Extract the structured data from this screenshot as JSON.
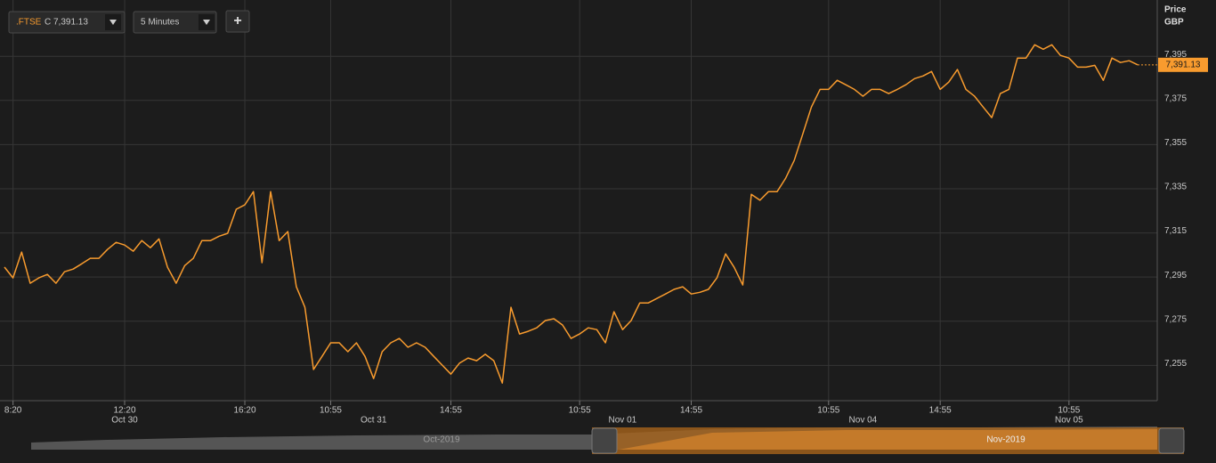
{
  "toolbar": {
    "quote_prefix": "C",
    "interval": "5 Minutes",
    "add_button": "+"
  },
  "chart_data": {
    "type": "line",
    "series": [
      {
        "name": ".FTSE",
        "color": "#f89b2e",
        "values": [
          7299.5,
          7294.6,
          7306.3,
          7292.2,
          7294.6,
          7296.2,
          7292.2,
          7297.4,
          7298.6,
          7301,
          7303.5,
          7303.5,
          7307.5,
          7310.7,
          7309.5,
          7306.7,
          7311.5,
          7308.3,
          7312.3,
          7299.4,
          7292.2,
          7300.2,
          7303.5,
          7311.5,
          7311.5,
          7313.5,
          7314.8,
          7325.7,
          7327.7,
          7333.7,
          7301.5,
          7333.7,
          7311.5,
          7315.6,
          7290.6,
          7281.3,
          7253.1,
          7259.1,
          7265.2,
          7265.2,
          7261.2,
          7265.2,
          7259.1,
          7249,
          7261.2,
          7265.2,
          7267.2,
          7263.2,
          7265.2,
          7263.2,
          7259.1,
          7255.1,
          7251,
          7256,
          7258.3,
          7257.1,
          7260,
          7257.1,
          7247,
          7281.3,
          7269.2,
          7270.4,
          7272,
          7275.3,
          7276.1,
          7273.3,
          7267.2,
          7269.2,
          7272,
          7271.2,
          7265.2,
          7279.3,
          7271.2,
          7275.3,
          7283.3,
          7283.3,
          7285.3,
          7287.3,
          7289.4,
          7290.6,
          7287.3,
          7288.1,
          7289.4,
          7294.6,
          7305.5,
          7299.4,
          7291.4,
          7332.5,
          7329.8,
          7333.7,
          7333.7,
          7339.8,
          7347.8,
          7359.9,
          7372,
          7380,
          7380,
          7384.1,
          7382.1,
          7380,
          7376.9,
          7380,
          7380,
          7378.1,
          7380,
          7382.1,
          7384.9,
          7386.1,
          7388.1,
          7380,
          7383.3,
          7389,
          7380,
          7376.9,
          7372,
          7367.2,
          7378.1,
          7380,
          7394.2,
          7394.2,
          7400.2,
          7398.2,
          7400.2,
          7395.4,
          7394.2,
          7390.1,
          7390.1,
          7390.9,
          7384.1,
          7394.2,
          7392.2,
          7393,
          7391.13
        ]
      }
    ],
    "last_label": "7,391.13",
    "y_axis_title": "Price",
    "y_axis_unit": "GBP",
    "ylim": [
      7239,
      7420.5
    ],
    "yticks": [
      {
        "value": 7255,
        "label": "7,255"
      },
      {
        "value": 7275,
        "label": "7,275"
      },
      {
        "value": 7295,
        "label": "7,295"
      },
      {
        "value": 7315,
        "label": "7,315"
      },
      {
        "value": 7335,
        "label": "7,335"
      },
      {
        "value": 7355,
        "label": "7,355"
      },
      {
        "value": 7375,
        "label": "7,375"
      },
      {
        "value": 7395,
        "label": "7,395"
      }
    ],
    "xticks": [
      {
        "value": 1,
        "label": "8:20"
      },
      {
        "value": 14,
        "label": "12:20"
      },
      {
        "value": 28,
        "label": "16:20"
      },
      {
        "value": 38,
        "label": "10:55"
      },
      {
        "value": 52,
        "label": "14:55"
      },
      {
        "value": 67,
        "label": "10:55"
      },
      {
        "value": 80,
        "label": "14:55"
      },
      {
        "value": 96,
        "label": "10:55"
      },
      {
        "value": 109,
        "label": "14:55"
      },
      {
        "value": 124,
        "label": "10:55"
      }
    ],
    "day_ticks": [
      {
        "value": 14,
        "label": "Oct 30"
      },
      {
        "value": 43,
        "label": "Oct 31"
      },
      {
        "value": 72,
        "label": "Nov 01"
      },
      {
        "value": 100,
        "label": "Nov 04"
      },
      {
        "value": 124,
        "label": "Nov 05"
      }
    ],
    "grid": true
  },
  "navigator": {
    "labels": [
      "Oct-2019",
      "Nov-2019"
    ]
  }
}
